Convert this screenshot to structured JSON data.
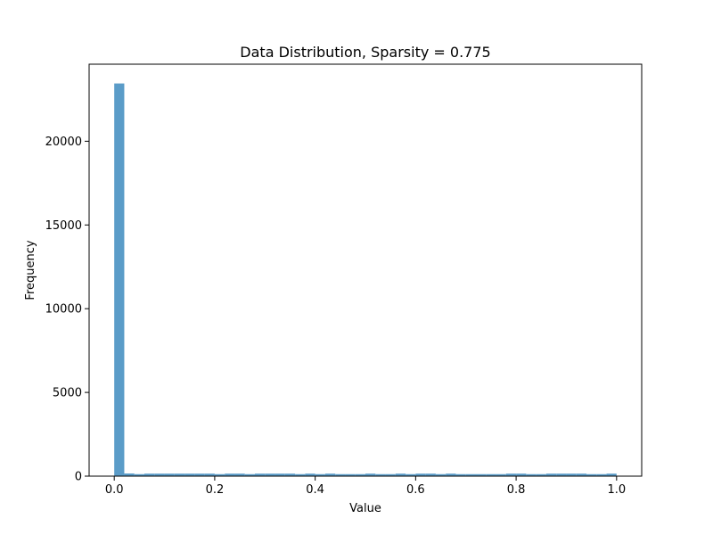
{
  "chart_data": {
    "type": "bar",
    "title": "Data Distribution, Sparsity = 0.775",
    "xlabel": "Value",
    "ylabel": "Frequency",
    "xlim": [
      -0.05,
      1.05
    ],
    "ylim": [
      0,
      24600
    ],
    "xticks": [
      0.0,
      0.2,
      0.4,
      0.6,
      0.8,
      1.0
    ],
    "xtick_labels": [
      "0.0",
      "0.2",
      "0.4",
      "0.6",
      "0.8",
      "1.0"
    ],
    "yticks": [
      0,
      5000,
      10000,
      15000,
      20000
    ],
    "ytick_labels": [
      "0",
      "5000",
      "10000",
      "15000",
      "20000"
    ],
    "bin_edges": [
      0.0,
      0.02,
      0.04,
      0.06,
      0.08,
      0.1,
      0.12,
      0.14,
      0.16,
      0.18,
      0.2,
      0.22,
      0.24,
      0.26,
      0.28,
      0.3,
      0.32,
      0.34,
      0.36,
      0.38,
      0.4,
      0.42,
      0.44,
      0.46,
      0.48,
      0.5,
      0.52,
      0.54,
      0.56,
      0.58,
      0.6,
      0.62,
      0.64,
      0.66,
      0.68,
      0.7,
      0.72,
      0.74,
      0.76,
      0.78,
      0.8,
      0.82,
      0.84,
      0.86,
      0.88,
      0.9,
      0.92,
      0.94,
      0.96,
      0.98,
      1.0
    ],
    "values": [
      23450,
      160,
      120,
      150,
      150,
      150,
      150,
      150,
      150,
      150,
      120,
      150,
      150,
      120,
      150,
      150,
      150,
      150,
      120,
      150,
      120,
      150,
      120,
      120,
      120,
      150,
      120,
      120,
      150,
      120,
      150,
      150,
      120,
      150,
      120,
      120,
      120,
      120,
      120,
      150,
      150,
      120,
      120,
      150,
      150,
      150,
      150,
      120,
      120,
      150
    ],
    "color": "#5b9cc8",
    "grid": false,
    "legend": "none"
  }
}
